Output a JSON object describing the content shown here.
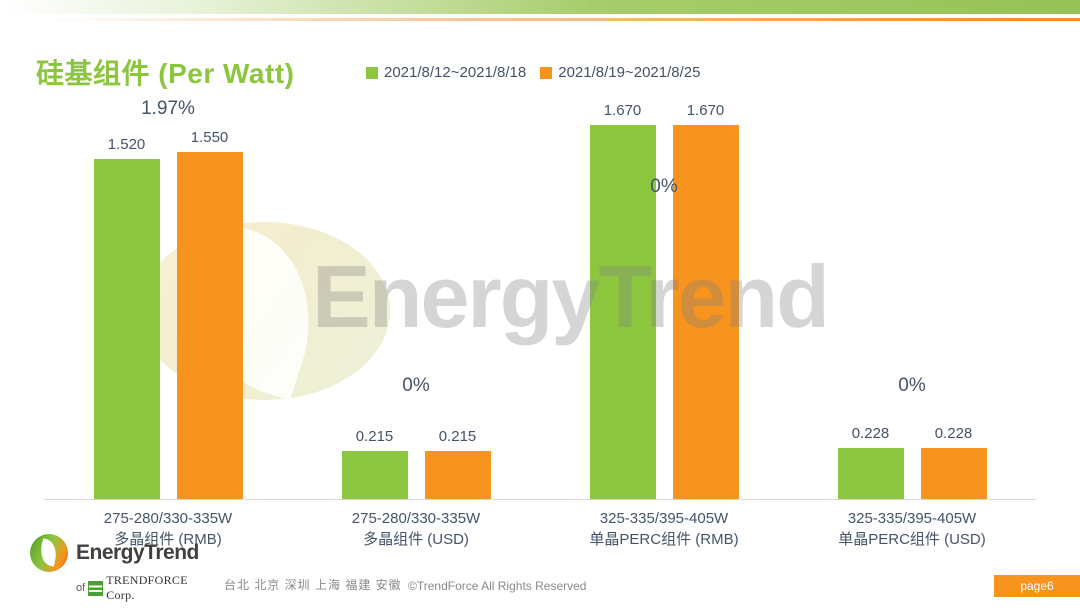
{
  "header": {
    "title": "硅基组件 (Per Watt)",
    "title_color": "#8CC63E"
  },
  "chart_data": {
    "type": "bar",
    "title": "硅基组件 (Per Watt)",
    "categories": [
      {
        "line1": "275-280/330-335W",
        "line2": "多晶组件 (RMB)"
      },
      {
        "line1": "275-280/330-335W",
        "line2": "多晶组件 (USD)"
      },
      {
        "line1": "325-335/395-405W",
        "line2": "单晶PERC组件 (RMB)"
      },
      {
        "line1": "325-335/395-405W",
        "line2": "单晶PERC组件 (USD)"
      }
    ],
    "series": [
      {
        "name": "2021/8/12~2021/8/18",
        "color": "#8CC63F",
        "values": [
          1.52,
          0.215,
          1.67,
          0.228
        ],
        "labels": [
          "1.520",
          "0.215",
          "1.670",
          "0.228"
        ]
      },
      {
        "name": "2021/8/19~2021/8/25",
        "color": "#F7941E",
        "values": [
          1.55,
          0.215,
          1.67,
          0.228
        ],
        "labels": [
          "1.550",
          "0.215",
          "1.670",
          "0.228"
        ]
      }
    ],
    "change_labels": [
      "1.97%",
      "0%",
      "0%",
      "0%"
    ],
    "xlabel": "",
    "ylabel": "",
    "ylim": [
      0,
      1.83
    ],
    "grid": false,
    "legend_position": "top-center",
    "label_color": "#44546A"
  },
  "watermark": {
    "text": "EnergyTrend"
  },
  "footer": {
    "logo_name": "EnergyTrend",
    "logo_sub_prefix": "of",
    "logo_sub": "TRENDFORCE Corp.",
    "locations": "台北 北京 深圳 上海 福建 安徽",
    "copyright": "©TrendForce All Rights Reserved",
    "page_badge": "page6"
  }
}
